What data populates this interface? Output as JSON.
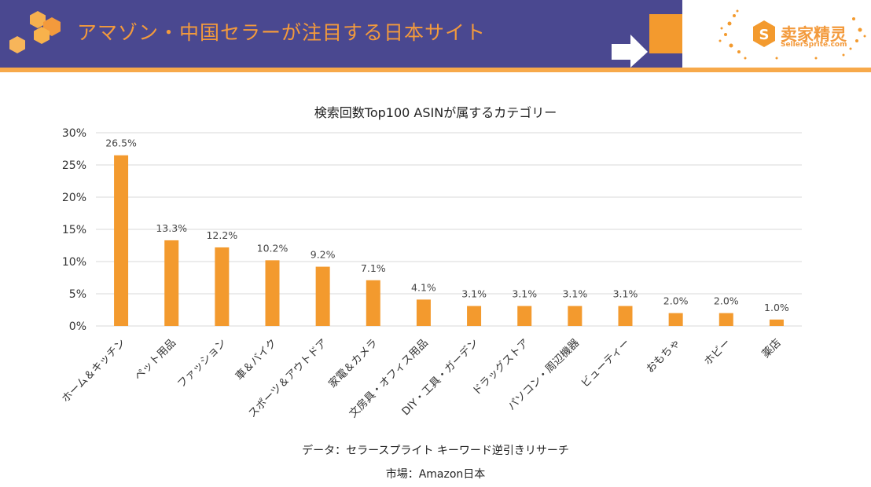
{
  "header": {
    "title": "アマゾン・中国セラーが注目する日本サイト",
    "accent_color": "#f39a3c",
    "bg_color": "#4a4890"
  },
  "logo": {
    "cn_text": "卖家精灵",
    "en_text": "SellerSprite.com",
    "icon": "sellersprite-s-logo-icon"
  },
  "chart_data": {
    "type": "bar",
    "title": "検索回数Top100 ASINが属するカテゴリー",
    "categories": [
      "ホーム＆キッチン",
      "ペット用品",
      "ファッション",
      "車＆バイク",
      "スポーツ＆アウトドア",
      "家電＆カメラ",
      "文房具・オフィス用品",
      "DIY・工具・ガーデン",
      "ドラッグストア",
      "パソコン・周辺機器",
      "ビューティー",
      "おもちゃ",
      "ホビー",
      "薬店"
    ],
    "values": [
      26.5,
      13.3,
      12.2,
      10.2,
      9.2,
      7.1,
      4.1,
      3.1,
      3.1,
      3.1,
      3.1,
      2.0,
      2.0,
      1.0
    ],
    "data_labels": [
      "26.5%",
      "13.3%",
      "12.2%",
      "10.2%",
      "9.2%",
      "7.1%",
      "4.1%",
      "3.1%",
      "3.1%",
      "3.1%",
      "3.1%",
      "2.0%",
      "2.0%",
      "1.0%"
    ],
    "yticks": [
      0,
      5,
      10,
      15,
      20,
      25,
      30
    ],
    "ytick_labels": [
      "0%",
      "5%",
      "10%",
      "15%",
      "20%",
      "25%",
      "30%"
    ],
    "ylim": [
      0,
      30
    ],
    "grid": true,
    "bar_color": "#f39a2e",
    "xlabel": "",
    "ylabel": ""
  },
  "source": {
    "line1": "データ：セラースプライト キーワード逆引きリサーチ",
    "line2": "市場：Amazon日本"
  }
}
